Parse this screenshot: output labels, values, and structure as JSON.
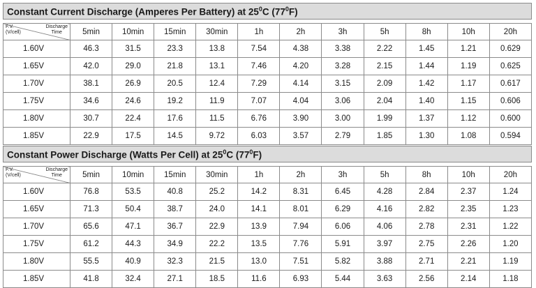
{
  "header": {
    "fv_label": "F.V.",
    "fv_unit": "(V/cell)",
    "discharge_label": "Discharge",
    "time_label": "Time"
  },
  "columns": [
    "5min",
    "10min",
    "15min",
    "30min",
    "1h",
    "2h",
    "3h",
    "5h",
    "8h",
    "10h",
    "20h"
  ],
  "current_table": {
    "title_pre": "Constant Current Discharge (Amperes Per Battery) at 25",
    "title_sup": "0",
    "title_mid": "C (77",
    "title_sup2": "0",
    "title_post": "F)",
    "rows": [
      {
        "fv": "1.60V",
        "values": [
          "46.3",
          "31.5",
          "23.3",
          "13.8",
          "7.54",
          "4.38",
          "3.38",
          "2.22",
          "1.45",
          "1.21",
          "0.629"
        ]
      },
      {
        "fv": "1.65V",
        "values": [
          "42.0",
          "29.0",
          "21.8",
          "13.1",
          "7.46",
          "4.20",
          "3.28",
          "2.15",
          "1.44",
          "1.19",
          "0.625"
        ]
      },
      {
        "fv": "1.70V",
        "values": [
          "38.1",
          "26.9",
          "20.5",
          "12.4",
          "7.29",
          "4.14",
          "3.15",
          "2.09",
          "1.42",
          "1.17",
          "0.617"
        ]
      },
      {
        "fv": "1.75V",
        "values": [
          "34.6",
          "24.6",
          "19.2",
          "11.9",
          "7.07",
          "4.04",
          "3.06",
          "2.04",
          "1.40",
          "1.15",
          "0.606"
        ]
      },
      {
        "fv": "1.80V",
        "values": [
          "30.7",
          "22.4",
          "17.6",
          "11.5",
          "6.76",
          "3.90",
          "3.00",
          "1.99",
          "1.37",
          "1.12",
          "0.600"
        ]
      },
      {
        "fv": "1.85V",
        "values": [
          "22.9",
          "17.5",
          "14.5",
          "9.72",
          "6.03",
          "3.57",
          "2.79",
          "1.85",
          "1.30",
          "1.08",
          "0.594"
        ]
      }
    ]
  },
  "power_table": {
    "title_pre": "Constant Power Discharge (Watts Per Cell) at 25",
    "title_sup": "0",
    "title_mid": "C (77",
    "title_sup2": "0",
    "title_post": "F)",
    "rows": [
      {
        "fv": "1.60V",
        "values": [
          "76.8",
          "53.5",
          "40.8",
          "25.2",
          "14.2",
          "8.31",
          "6.45",
          "4.28",
          "2.84",
          "2.37",
          "1.24"
        ]
      },
      {
        "fv": "1.65V",
        "values": [
          "71.3",
          "50.4",
          "38.7",
          "24.0",
          "14.1",
          "8.01",
          "6.29",
          "4.16",
          "2.82",
          "2.35",
          "1.23"
        ]
      },
      {
        "fv": "1.70V",
        "values": [
          "65.6",
          "47.1",
          "36.7",
          "22.9",
          "13.9",
          "7.94",
          "6.06",
          "4.06",
          "2.78",
          "2.31",
          "1.22"
        ]
      },
      {
        "fv": "1.75V",
        "values": [
          "61.2",
          "44.3",
          "34.9",
          "22.2",
          "13.5",
          "7.76",
          "5.91",
          "3.97",
          "2.75",
          "2.26",
          "1.20"
        ]
      },
      {
        "fv": "1.80V",
        "values": [
          "55.5",
          "40.9",
          "32.3",
          "21.5",
          "13.0",
          "7.51",
          "5.82",
          "3.88",
          "2.71",
          "2.21",
          "1.19"
        ]
      },
      {
        "fv": "1.85V",
        "values": [
          "41.8",
          "32.4",
          "27.1",
          "18.5",
          "11.6",
          "6.93",
          "5.44",
          "3.63",
          "2.56",
          "2.14",
          "1.18"
        ]
      }
    ]
  }
}
